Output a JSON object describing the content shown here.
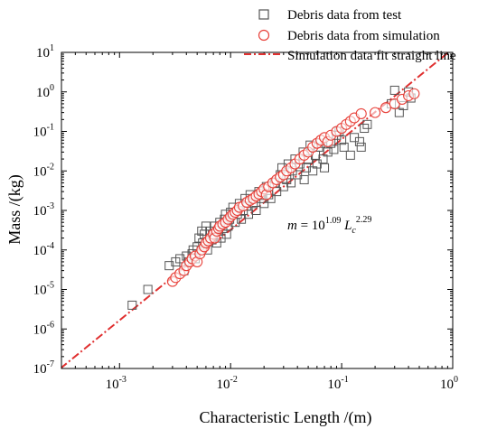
{
  "chart_data": {
    "type": "scatter",
    "xlabel": "Characteristic Length /(m)",
    "ylabel": "Mass /(kg)",
    "xscale": "log",
    "yscale": "log",
    "xlim": [
      0.0003,
      1
    ],
    "ylim": [
      1e-07,
      10
    ],
    "x_ticks": [
      {
        "base": "10",
        "exp": "-3",
        "value": 0.001
      },
      {
        "base": "10",
        "exp": "-2",
        "value": 0.01
      },
      {
        "base": "10",
        "exp": "-1",
        "value": 0.1
      },
      {
        "base": "10",
        "exp": "0",
        "value": 1
      }
    ],
    "y_ticks": [
      {
        "base": "10",
        "exp": "-7",
        "value": 1e-07
      },
      {
        "base": "10",
        "exp": "-6",
        "value": 1e-06
      },
      {
        "base": "10",
        "exp": "-5",
        "value": 1e-05
      },
      {
        "base": "10",
        "exp": "-4",
        "value": 0.0001
      },
      {
        "base": "10",
        "exp": "-3",
        "value": 0.001
      },
      {
        "base": "10",
        "exp": "-2",
        "value": 0.01
      },
      {
        "base": "10",
        "exp": "-1",
        "value": 0.1
      },
      {
        "base": "10",
        "exp": "0",
        "value": 1
      },
      {
        "base": "10",
        "exp": "1",
        "value": 10
      }
    ],
    "legend_position": "top-right",
    "grid": false,
    "colors": {
      "test": "#555555",
      "simulation": "#e8413a",
      "fit": "#e03030"
    },
    "equation": {
      "lhs": "m",
      "eq": " = 10",
      "exp1": "1.09",
      "var": " L",
      "sub": "c",
      "exp2": "2.29"
    },
    "series": [
      {
        "name": "Debris data from test",
        "marker": "square-open",
        "points": [
          [
            0.0013,
            4e-06
          ],
          [
            0.0018,
            1e-05
          ],
          [
            0.0028,
            4e-05
          ],
          [
            0.0032,
            5e-05
          ],
          [
            0.0035,
            6e-05
          ],
          [
            0.0038,
            3e-05
          ],
          [
            0.004,
            7e-05
          ],
          [
            0.0042,
            5e-05
          ],
          [
            0.0045,
            8e-05
          ],
          [
            0.0046,
            0.0001
          ],
          [
            0.0048,
            6e-05
          ],
          [
            0.005,
            0.00012
          ],
          [
            0.0052,
            0.0002
          ],
          [
            0.0055,
            0.0003
          ],
          [
            0.0056,
            0.00015
          ],
          [
            0.0058,
            0.00025
          ],
          [
            0.006,
            0.0004
          ],
          [
            0.0062,
            0.0001
          ],
          [
            0.0065,
            0.0002
          ],
          [
            0.0066,
            0.0003
          ],
          [
            0.0068,
            0.00018
          ],
          [
            0.007,
            0.00025
          ],
          [
            0.0072,
            0.0004
          ],
          [
            0.0075,
            0.00015
          ],
          [
            0.0078,
            0.0003
          ],
          [
            0.008,
            0.0005
          ],
          [
            0.0082,
            0.0002
          ],
          [
            0.0085,
            0.00035
          ],
          [
            0.0088,
            0.0006
          ],
          [
            0.009,
            0.0008
          ],
          [
            0.0092,
            0.00025
          ],
          [
            0.0095,
            0.0004
          ],
          [
            0.0098,
            0.0006
          ],
          [
            0.01,
            0.0009
          ],
          [
            0.0105,
            0.0012
          ],
          [
            0.011,
            0.0005
          ],
          [
            0.0115,
            0.0008
          ],
          [
            0.012,
            0.0015
          ],
          [
            0.0125,
            0.0006
          ],
          [
            0.013,
            0.001
          ],
          [
            0.0135,
            0.002
          ],
          [
            0.014,
            0.0013
          ],
          [
            0.0145,
            0.0008
          ],
          [
            0.015,
            0.0025
          ],
          [
            0.016,
            0.0015
          ],
          [
            0.017,
            0.001
          ],
          [
            0.018,
            0.003
          ],
          [
            0.019,
            0.002
          ],
          [
            0.02,
            0.0015
          ],
          [
            0.021,
            0.004
          ],
          [
            0.022,
            0.0025
          ],
          [
            0.023,
            0.002
          ],
          [
            0.025,
            0.005
          ],
          [
            0.026,
            0.003
          ],
          [
            0.028,
            0.008
          ],
          [
            0.029,
            0.012
          ],
          [
            0.03,
            0.004
          ],
          [
            0.032,
            0.006
          ],
          [
            0.033,
            0.015
          ],
          [
            0.035,
            0.005
          ],
          [
            0.036,
            0.01
          ],
          [
            0.038,
            0.02
          ],
          [
            0.04,
            0.008
          ],
          [
            0.042,
            0.015
          ],
          [
            0.045,
            0.03
          ],
          [
            0.046,
            0.006
          ],
          [
            0.048,
            0.012
          ],
          [
            0.05,
            0.02
          ],
          [
            0.052,
            0.045
          ],
          [
            0.055,
            0.01
          ],
          [
            0.058,
            0.025
          ],
          [
            0.06,
            0.015
          ],
          [
            0.062,
            0.04
          ],
          [
            0.065,
            0.05
          ],
          [
            0.068,
            0.02
          ],
          [
            0.07,
            0.012
          ],
          [
            0.075,
            0.03
          ],
          [
            0.08,
            0.05
          ],
          [
            0.085,
            0.035
          ],
          [
            0.09,
            0.08
          ],
          [
            0.095,
            0.1
          ],
          [
            0.1,
            0.06
          ],
          [
            0.105,
            0.04
          ],
          [
            0.12,
            0.025
          ],
          [
            0.13,
            0.07
          ],
          [
            0.145,
            0.055
          ],
          [
            0.15,
            0.04
          ],
          [
            0.16,
            0.12
          ],
          [
            0.17,
            0.15
          ],
          [
            0.28,
            0.5
          ],
          [
            0.3,
            1.1
          ],
          [
            0.33,
            0.3
          ],
          [
            0.36,
            0.45
          ],
          [
            0.4,
            1.0
          ],
          [
            0.42,
            0.7
          ]
        ]
      },
      {
        "name": "Debris data from simulation",
        "marker": "circle-open",
        "points": [
          [
            0.003,
            1.6e-05
          ],
          [
            0.0032,
            2e-05
          ],
          [
            0.0035,
            2.5e-05
          ],
          [
            0.0038,
            3e-05
          ],
          [
            0.004,
            4e-05
          ],
          [
            0.0043,
            5e-05
          ],
          [
            0.0045,
            6e-05
          ],
          [
            0.0048,
            7e-05
          ],
          [
            0.005,
            5e-05
          ],
          [
            0.0053,
            8e-05
          ],
          [
            0.0055,
            0.0001
          ],
          [
            0.0058,
            0.00012
          ],
          [
            0.006,
            0.00015
          ],
          [
            0.0063,
            0.00017
          ],
          [
            0.0066,
            0.0002
          ],
          [
            0.007,
            0.00025
          ],
          [
            0.0072,
            0.0002
          ],
          [
            0.0075,
            0.0003
          ],
          [
            0.0078,
            0.00035
          ],
          [
            0.008,
            0.0004
          ],
          [
            0.0085,
            0.00045
          ],
          [
            0.009,
            0.0005
          ],
          [
            0.0095,
            0.0006
          ],
          [
            0.01,
            0.0007
          ],
          [
            0.0105,
            0.0008
          ],
          [
            0.011,
            0.0009
          ],
          [
            0.0115,
            0.001
          ],
          [
            0.012,
            0.0012
          ],
          [
            0.013,
            0.0013
          ],
          [
            0.014,
            0.0016
          ],
          [
            0.015,
            0.0018
          ],
          [
            0.016,
            0.002
          ],
          [
            0.017,
            0.0023
          ],
          [
            0.018,
            0.0026
          ],
          [
            0.019,
            0.003
          ],
          [
            0.02,
            0.0035
          ],
          [
            0.021,
            0.0025
          ],
          [
            0.022,
            0.004
          ],
          [
            0.024,
            0.005
          ],
          [
            0.026,
            0.006
          ],
          [
            0.028,
            0.007
          ],
          [
            0.03,
            0.008
          ],
          [
            0.032,
            0.01
          ],
          [
            0.035,
            0.012
          ],
          [
            0.038,
            0.015
          ],
          [
            0.042,
            0.02
          ],
          [
            0.046,
            0.025
          ],
          [
            0.05,
            0.03
          ],
          [
            0.055,
            0.04
          ],
          [
            0.06,
            0.05
          ],
          [
            0.065,
            0.06
          ],
          [
            0.07,
            0.07
          ],
          [
            0.075,
            0.055
          ],
          [
            0.08,
            0.08
          ],
          [
            0.09,
            0.1
          ],
          [
            0.1,
            0.12
          ],
          [
            0.11,
            0.15
          ],
          [
            0.12,
            0.18
          ],
          [
            0.13,
            0.22
          ],
          [
            0.15,
            0.28
          ],
          [
            0.2,
            0.3
          ],
          [
            0.25,
            0.4
          ],
          [
            0.3,
            0.5
          ],
          [
            0.35,
            0.65
          ],
          [
            0.4,
            0.8
          ],
          [
            0.45,
            0.9
          ]
        ]
      },
      {
        "name": "Simulation data fit straight line",
        "marker": "dash-dot-line",
        "fit": {
          "log10_coef": 1.09,
          "exponent": 2.29
        }
      }
    ]
  }
}
